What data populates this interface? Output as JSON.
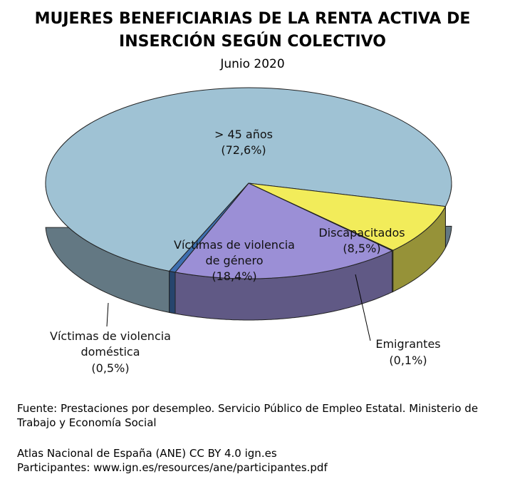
{
  "title": {
    "line1": "MUJERES BENEFICIARIAS DE LA RENTA ACTIVA DE",
    "line2": "INSERCIÓN SEGÚN COLECTIVO",
    "subtitle": "Junio 2020"
  },
  "chart_data": {
    "type": "pie",
    "style": "3d",
    "slices": [
      {
        "name": "> 45 años",
        "label_pct": "(72,6%)",
        "value": 72.6,
        "color": "#9fc2d4"
      },
      {
        "name": "Discapacitados",
        "label_pct": "(8,5%)",
        "value": 8.5,
        "color": "#f2ec5a"
      },
      {
        "name": "Emigrantes",
        "label_pct": "(0,1%)",
        "value": 0.1,
        "color": "#c8b73b"
      },
      {
        "name": "Víctimas de violencia de género",
        "name_line1": "Víctimas de violencia",
        "name_line2": "de género",
        "label_pct": "(18,4%)",
        "value": 18.4,
        "color": "#9b8fd6"
      },
      {
        "name": "Víctimas de violencia doméstica",
        "name_line1": "Víctimas de violencia",
        "name_line2": "doméstica",
        "label_pct": "(0,5%)",
        "value": 0.5,
        "color": "#3d6fb0"
      }
    ]
  },
  "source": {
    "line1": "Fuente: Prestaciones por desempleo. Servicio Público de Empleo Estatal. Ministerio de Trabajo y Economía Social",
    "line2": "Atlas Nacional de España (ANE) CC BY 4.0 ign.es",
    "line3": "Participantes: www.ign.es/resources/ane/participantes.pdf"
  }
}
